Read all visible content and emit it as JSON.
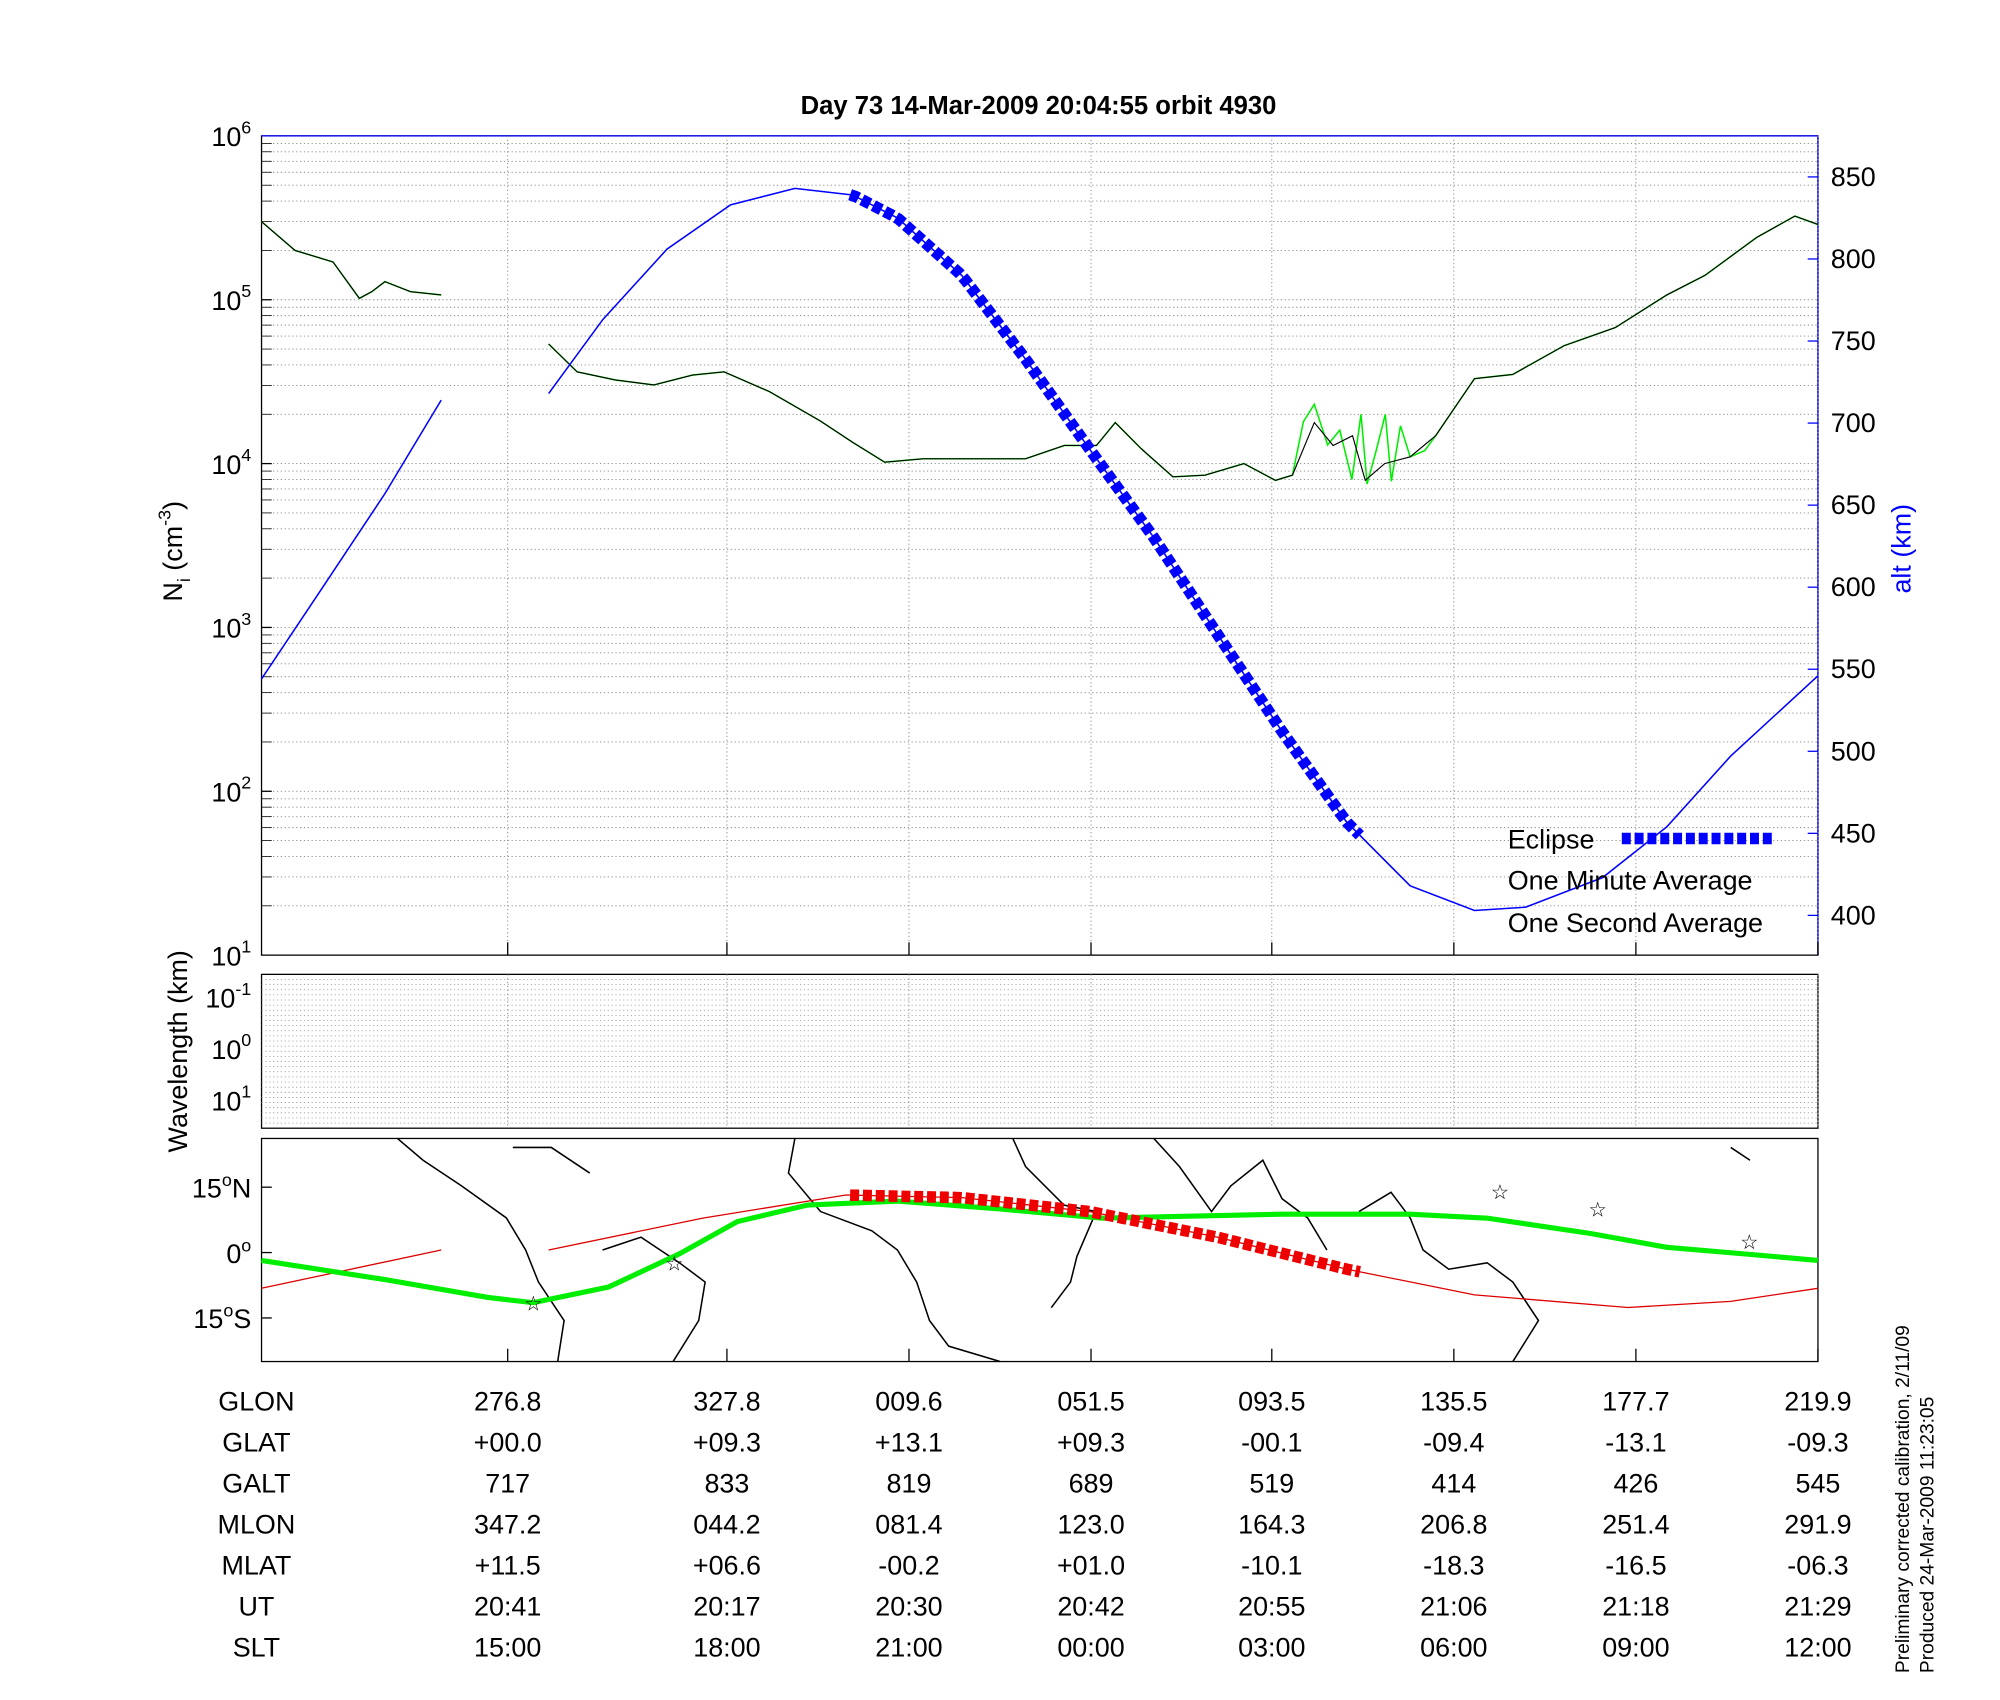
{
  "chart_data": {
    "type": "line",
    "title": "Day 73  14-Mar-2009 20:04:55   orbit 4930",
    "panels": {
      "density": {
        "ylabel": "N",
        "ylabel_sub": "i",
        "ylabel_unit": " (cm",
        "ylabel_unit_exp": "-3",
        "ylabel_unit_end": ")",
        "yscale": "log",
        "ylim": [
          10,
          1000000
        ],
        "yticks": [
          {
            "base": "10",
            "exp": "1",
            "value": 10
          },
          {
            "base": "10",
            "exp": "2",
            "value": 100
          },
          {
            "base": "10",
            "exp": "3",
            "value": 1000
          },
          {
            "base": "10",
            "exp": "4",
            "value": 10000
          },
          {
            "base": "10",
            "exp": "5",
            "value": 100000
          },
          {
            "base": "10",
            "exp": "6",
            "value": 1000000
          }
        ],
        "y2label": "alt (km)",
        "y2lim": [
          375,
          875
        ],
        "y2ticks": [
          "400",
          "450",
          "500",
          "550",
          "600",
          "650",
          "700",
          "750",
          "800",
          "850"
        ],
        "grid": true,
        "legend": {
          "placement": "bottom-right",
          "entries": [
            {
              "label": "Eclipse",
              "color": "#0000ff"
            },
            {
              "label": "One Minute Average",
              "color": "#000000"
            },
            {
              "label": "One Second Average",
              "color": "#00ee00"
            }
          ]
        },
        "x_unit": "SLT hours (unwrapped)",
        "series": [
          {
            "name": "One Second Average",
            "color": "#00ee00",
            "segments": [
              [
                [
                  11.63,
                  300000
                ],
                [
                  12.09,
                  200000
                ],
                [
                  12.61,
                  170000
                ],
                [
                  12.97,
                  102000
                ],
                [
                  13.14,
                  112000
                ],
                [
                  13.32,
                  129000
                ],
                [
                  13.67,
                  112000
                ],
                [
                  14.09,
                  107000
                ]
              ],
              [
                [
                  15.56,
                  53700
                ],
                [
                  15.95,
                  36300
                ],
                [
                  16.47,
                  32400
                ],
                [
                  17.0,
                  30200
                ],
                [
                  17.53,
                  34700
                ],
                [
                  17.96,
                  36300
                ],
                [
                  18.7,
                  27500
                ],
                [
                  19.54,
                  18200
                ],
                [
                  20.07,
                  13500
                ],
                [
                  20.6,
                  10200
                ],
                [
                  21.23,
                  10700
                ],
                [
                  22.08,
                  10700
                ],
                [
                  22.92,
                  10700
                ],
                [
                  23.56,
                  12900
                ],
                [
                  24.09,
                  12900
                ],
                [
                  24.4,
                  17800
                ],
                [
                  24.83,
                  12300
                ],
                [
                  25.35,
                  8300
                ],
                [
                  25.88,
                  8500
                ],
                [
                  26.52,
                  10000
                ],
                [
                  27.04,
                  7900
                ],
                [
                  27.32,
                  8500
                ],
                [
                  27.5,
                  18000
                ],
                [
                  27.68,
                  23000
                ],
                [
                  27.9,
                  13000
                ],
                [
                  28.1,
                  16000
                ],
                [
                  28.3,
                  8000
                ],
                [
                  28.45,
                  20000
                ],
                [
                  28.55,
                  7500
                ],
                [
                  28.7,
                  12000
                ],
                [
                  28.85,
                  20000
                ],
                [
                  28.95,
                  7800
                ],
                [
                  29.1,
                  17000
                ],
                [
                  29.26,
                  11000
                ],
                [
                  29.5,
                  12000
                ],
                [
                  29.68,
                  14800
                ],
                [
                  30.32,
                  33000
                ],
                [
                  30.95,
                  35000
                ],
                [
                  31.8,
                  52500
                ],
                [
                  32.64,
                  67600
                ],
                [
                  33.49,
                  107000
                ],
                [
                  34.12,
                  141000
                ],
                [
                  34.97,
                  240000
                ],
                [
                  35.6,
                  324000
                ],
                [
                  35.98,
                  288000
                ]
              ]
            ]
          },
          {
            "name": "One Minute Average",
            "color": "#000000",
            "segments": [
              [
                [
                  11.63,
                  300000
                ],
                [
                  12.09,
                  200000
                ],
                [
                  12.61,
                  170000
                ],
                [
                  12.97,
                  102000
                ],
                [
                  13.14,
                  112000
                ],
                [
                  13.32,
                  129000
                ],
                [
                  13.67,
                  112000
                ],
                [
                  14.09,
                  107000
                ]
              ],
              [
                [
                  15.56,
                  53700
                ],
                [
                  15.95,
                  36300
                ],
                [
                  16.47,
                  32400
                ],
                [
                  17.0,
                  30200
                ],
                [
                  17.53,
                  34700
                ],
                [
                  17.96,
                  36300
                ],
                [
                  18.7,
                  27500
                ],
                [
                  19.54,
                  18200
                ],
                [
                  20.07,
                  13500
                ],
                [
                  20.6,
                  10200
                ],
                [
                  21.23,
                  10700
                ],
                [
                  22.08,
                  10700
                ],
                [
                  22.92,
                  10700
                ],
                [
                  23.56,
                  12900
                ],
                [
                  24.09,
                  12900
                ],
                [
                  24.4,
                  17800
                ],
                [
                  24.83,
                  12300
                ],
                [
                  25.35,
                  8300
                ],
                [
                  25.88,
                  8500
                ],
                [
                  26.52,
                  10000
                ],
                [
                  27.04,
                  7900
                ],
                [
                  27.32,
                  8500
                ],
                [
                  27.68,
                  17800
                ],
                [
                  27.99,
                  12900
                ],
                [
                  28.31,
                  14800
                ],
                [
                  28.52,
                  7900
                ],
                [
                  28.84,
                  10000
                ],
                [
                  29.26,
                  11000
                ],
                [
                  29.68,
                  14800
                ],
                [
                  30.32,
                  33000
                ],
                [
                  30.95,
                  35000
                ],
                [
                  31.8,
                  52500
                ],
                [
                  32.64,
                  67600
                ],
                [
                  33.49,
                  107000
                ],
                [
                  34.12,
                  141000
                ],
                [
                  34.97,
                  240000
                ],
                [
                  35.6,
                  324000
                ],
                [
                  35.98,
                  288000
                ]
              ]
            ]
          },
          {
            "name": "alt",
            "axis": "y2",
            "color": "#0000ff",
            "segments": [
              [
                [
                  11.63,
                  544
                ],
                [
                  12.44,
                  598
                ],
                [
                  13.32,
                  657
                ],
                [
                  14.09,
                  714
                ]
              ],
              [
                [
                  15.56,
                  718
                ],
                [
                  16.3,
                  763
                ],
                [
                  17.18,
                  806
                ],
                [
                  18.06,
                  833
                ],
                [
                  19.12,
                  843
                ],
                [
                  20.07,
                  839
                ],
                [
                  20.81,
                  825
                ],
                [
                  21.87,
                  790
                ],
                [
                  22.92,
                  739
                ],
                [
                  23.98,
                  684
                ],
                [
                  25.04,
                  630
                ],
                [
                  26.09,
                  571
                ],
                [
                  27.15,
                  512
                ],
                [
                  28.21,
                  457
                ],
                [
                  29.26,
                  418
                ],
                [
                  30.32,
                  403
                ],
                [
                  31.16,
                  405
                ],
                [
                  32.43,
                  423
                ],
                [
                  33.49,
                  454
                ],
                [
                  34.54,
                  497
                ],
                [
                  35.98,
                  546
                ]
              ]
            ]
          }
        ],
        "eclipse_range": [
          20.03,
          28.47
        ]
      },
      "wavelength": {
        "ylabel": "Wavelength (km)",
        "yticks": [
          {
            "base": "10",
            "exp": "-1"
          },
          {
            "base": "10",
            "exp": "0"
          },
          {
            "base": "10",
            "exp": "1"
          }
        ]
      },
      "map": {
        "yticks": [
          {
            "deg": "15",
            "suffix": "N",
            "value": 15
          },
          {
            "deg": "0",
            "suffix": "",
            "value": 0
          },
          {
            "deg": "15",
            "suffix": "S",
            "value": -15
          }
        ],
        "ylim": [
          -25,
          26
        ],
        "magnetic_track": [
          [
            11.63,
            -1.8
          ],
          [
            13.32,
            -6.2
          ],
          [
            14.73,
            -10.3
          ],
          [
            15.35,
            -11.5
          ],
          [
            16.38,
            -7.9
          ],
          [
            17.35,
            -0.3
          ],
          [
            18.17,
            7.1
          ],
          [
            19.33,
            10.9
          ],
          [
            20.81,
            11.8
          ],
          [
            22.5,
            10.0
          ],
          [
            24.19,
            7.9
          ],
          [
            26.09,
            8.5
          ],
          [
            27.15,
            8.8
          ],
          [
            29.26,
            8.8
          ],
          [
            30.53,
            7.9
          ],
          [
            32.22,
            4.4
          ],
          [
            33.49,
            1.2
          ],
          [
            34.76,
            -0.3
          ],
          [
            35.98,
            -1.8
          ]
        ],
        "orbit_track_segments": [
          [
            [
              11.63,
              -8.2
            ],
            [
              14.09,
              0.6
            ]
          ],
          [
            [
              15.56,
              0.6
            ],
            [
              17.67,
              7.9
            ],
            [
              19.96,
              13.2
            ],
            [
              21.87,
              12.6
            ],
            [
              23.98,
              9.4
            ],
            [
              26.09,
              3.5
            ],
            [
              28.21,
              -3.8
            ],
            [
              30.32,
              -9.7
            ],
            [
              32.85,
              -12.6
            ],
            [
              34.54,
              -11.2
            ],
            [
              35.98,
              -8.2
            ]
          ]
        ],
        "stars": [
          [
            15.35,
            -11.5
          ],
          [
            17.28,
            -2.4
          ],
          [
            30.74,
            14.1
          ],
          [
            32.35,
            10.0
          ],
          [
            34.85,
            2.6
          ]
        ]
      }
    },
    "table": {
      "row_labels": [
        "GLON",
        "GLAT",
        "GALT",
        "MLON",
        "MLAT",
        "UT",
        "SLT"
      ],
      "columns": [
        [
          "276.8",
          "+00.0",
          "717",
          "347.2",
          "+11.5",
          "20:41",
          "15:00"
        ],
        [
          "327.8",
          "+09.3",
          "833",
          "044.2",
          "+06.6",
          "20:17",
          "18:00"
        ],
        [
          "009.6",
          "+13.1",
          "819",
          "081.4",
          "-00.2",
          "20:30",
          "21:00"
        ],
        [
          "051.5",
          "+09.3",
          "689",
          "123.0",
          "+01.0",
          "20:42",
          "00:00"
        ],
        [
          "093.5",
          "-00.1",
          "519",
          "164.3",
          "-10.1",
          "20:55",
          "03:00"
        ],
        [
          "135.5",
          "-09.4",
          "414",
          "206.8",
          "-18.3",
          "21:06",
          "06:00"
        ],
        [
          "177.7",
          "-13.1",
          "426",
          "251.4",
          "-16.5",
          "21:18",
          "09:00"
        ],
        [
          "219.9",
          "-09.3",
          "545",
          "291.9",
          "-06.3",
          "21:29",
          "12:00"
        ]
      ],
      "x_tick_hours": [
        15,
        18,
        21,
        24,
        27,
        30,
        33,
        36
      ]
    },
    "footer": {
      "line1": "Preliminary corrected calibration, 2/11/09",
      "line2": "Produced 24-Mar-2009 11:23:05"
    }
  }
}
